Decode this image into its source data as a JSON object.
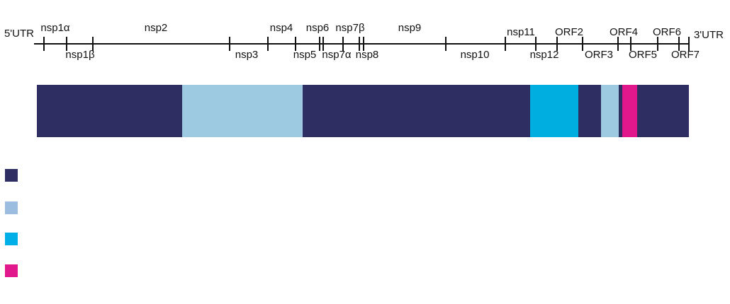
{
  "genome": {
    "regions": [
      "5'UTR",
      "nsp1α",
      "nsp1β",
      "nsp2",
      "nsp3",
      "nsp4",
      "nsp5",
      "nsp6",
      "nsp7α",
      "nsp7β",
      "nsp8",
      "nsp9",
      "nsp10",
      "nsp11",
      "nsp12",
      "ORF2",
      "ORF3",
      "ORF4",
      "ORF5",
      "ORF6",
      "ORF7",
      "3'UTR"
    ]
  }
}
